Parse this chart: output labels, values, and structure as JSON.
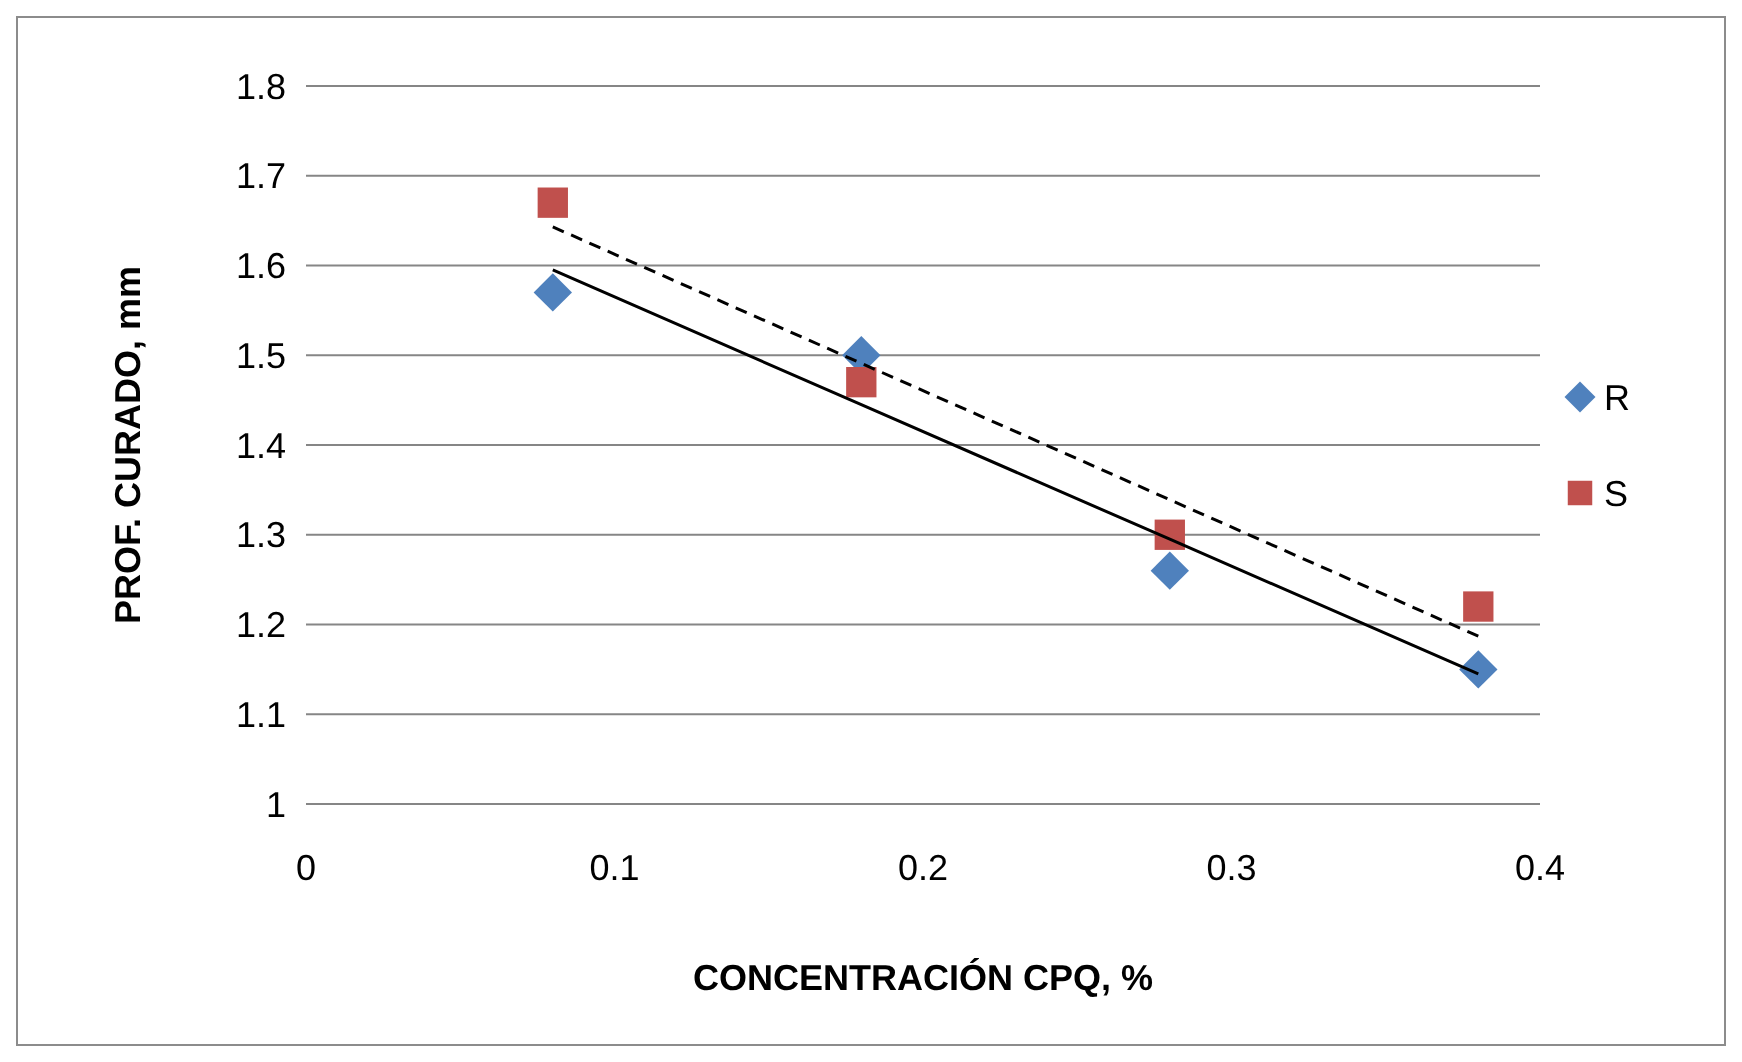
{
  "chart_data": {
    "type": "scatter",
    "xlabel": "CONCENTRACIÓN CPQ, %",
    "ylabel": "PROF. CURADO, mm",
    "x": [
      0.08,
      0.18,
      0.28,
      0.38
    ],
    "series": [
      {
        "name": "R",
        "color": "#4f81bd",
        "marker": "diamond",
        "values": [
          1.57,
          1.5,
          1.26,
          1.15
        ]
      },
      {
        "name": "S",
        "color": "#c0504d",
        "marker": "square",
        "values": [
          1.67,
          1.47,
          1.3,
          1.22
        ]
      },
      {
        "type": "line",
        "color": "#000000",
        "marker": "none",
        "line_style": "solid",
        "x": [
          0.08,
          0.18,
          0.28,
          0.38
        ],
        "values": [
          1.595,
          1.445,
          1.295,
          1.145
        ]
      },
      {
        "type": "line",
        "color": "#000000",
        "marker": "none",
        "line_style": "dashed",
        "x": [
          0.08,
          0.18,
          0.28,
          0.38
        ],
        "values": [
          1.643,
          1.491,
          1.339,
          1.187
        ]
      }
    ],
    "xlim": [
      0,
      0.4
    ],
    "xticks": [
      0,
      0.1,
      0.2,
      0.3,
      0.4
    ],
    "ylim": [
      1,
      1.8
    ],
    "yticks": [
      1,
      1.1,
      1.2,
      1.3,
      1.4,
      1.5,
      1.6,
      1.7,
      1.8
    ],
    "grid": "y",
    "legend": "right"
  }
}
